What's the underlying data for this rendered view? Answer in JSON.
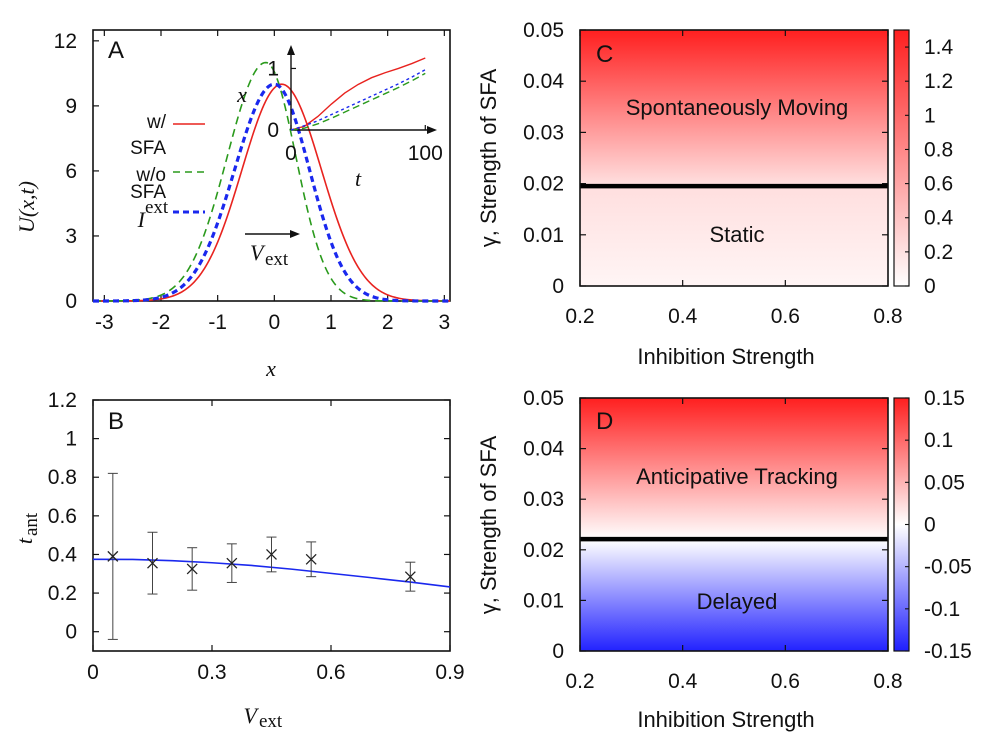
{
  "chart_data": [
    {
      "panel": "A",
      "type": "line",
      "xlabel": "x",
      "ylabel": "U(x,t)",
      "xlim": [
        -3.2,
        3.1
      ],
      "ylim": [
        0,
        12.5
      ],
      "xticks": [
        "-3",
        "-2",
        "-1",
        "0",
        "1",
        "2",
        "3"
      ],
      "yticks": [
        "0",
        "3",
        "6",
        "9",
        "12"
      ],
      "series": [
        {
          "name": "w/ SFA",
          "color": "#e8231f",
          "style": "solid",
          "peak_x": 0.13,
          "peak_y": 10.0,
          "sigma_left": 0.7,
          "sigma_right": 0.7
        },
        {
          "name": "w/o SFA",
          "color": "#2a9a1c",
          "style": "dashed",
          "peak_x": -0.15,
          "peak_y": 11.0,
          "sigma_left": 0.68,
          "sigma_right": 0.53
        },
        {
          "name": "I^ext",
          "color": "#1a28ee",
          "style": "dashed-thick",
          "peak_x": 0.0,
          "peak_y": 10.0,
          "sigma_left": 0.7,
          "sigma_right": 0.62
        }
      ],
      "legend_display": [
        "w/",
        "SFA",
        "w/o",
        "SFA",
        "I",
        "ext"
      ],
      "annotation_main": "V",
      "annotation_sub": "ext",
      "inset": {
        "xlabel": "t",
        "ylabel": "x",
        "xlim": [
          0,
          105
        ],
        "ylim": [
          0,
          1.3
        ],
        "xticks": [
          "0",
          "100"
        ],
        "yticks": [
          "0",
          "1"
        ],
        "series": [
          {
            "name": "w/ SFA",
            "color": "#e8231f",
            "x": [
              0,
              10,
              20,
              30,
              40,
              50,
              60,
              70,
              80,
              90,
              100
            ],
            "y": [
              0,
              0.06,
              0.22,
              0.42,
              0.6,
              0.74,
              0.85,
              0.93,
              1.0,
              1.08,
              1.17
            ]
          },
          {
            "name": "w/o SFA",
            "color": "#2a9a1c",
            "x": [
              0,
              10,
              20,
              30,
              40,
              50,
              60,
              70,
              80,
              90,
              100
            ],
            "y": [
              0,
              0.03,
              0.1,
              0.19,
              0.29,
              0.39,
              0.49,
              0.59,
              0.69,
              0.8,
              0.92
            ]
          },
          {
            "name": "I^ext",
            "color": "#1a28ee",
            "x": [
              0,
              10,
              20,
              30,
              40,
              50,
              60,
              70,
              80,
              90,
              100
            ],
            "y": [
              0,
              0.07,
              0.15,
              0.25,
              0.35,
              0.45,
              0.55,
              0.65,
              0.75,
              0.86,
              0.98
            ]
          }
        ]
      }
    },
    {
      "panel": "B",
      "type": "scatter",
      "xlabel_main": "V",
      "xlabel_sub": "ext",
      "ylabel_main": "t",
      "ylabel_sub": "ant",
      "xlim": [
        0,
        0.9
      ],
      "ylim": [
        -0.1,
        1.2
      ],
      "xticks": [
        "0",
        "0.3",
        "0.6",
        "0.9"
      ],
      "yticks": [
        "0",
        "0.2",
        "0.4",
        "0.6",
        "0.8",
        "1",
        "1.2"
      ],
      "points": {
        "x": [
          0.05,
          0.15,
          0.25,
          0.35,
          0.45,
          0.55,
          0.8
        ],
        "y": [
          0.39,
          0.355,
          0.325,
          0.355,
          0.4,
          0.375,
          0.285
        ],
        "err": [
          0.43,
          0.16,
          0.11,
          0.1,
          0.09,
          0.09,
          0.075
        ]
      },
      "curve": {
        "color": "#1a28ee",
        "x": [
          0,
          0.1,
          0.2,
          0.3,
          0.4,
          0.5,
          0.6,
          0.7,
          0.8,
          0.9
        ],
        "y": [
          0.375,
          0.374,
          0.368,
          0.357,
          0.343,
          0.324,
          0.302,
          0.28,
          0.257,
          0.232
        ]
      }
    },
    {
      "panel": "C",
      "type": "heatmap",
      "xlabel": "Inhibition Strength",
      "ylabel": "γ, Strength of SFA",
      "xlim": [
        0.2,
        0.8
      ],
      "ylim": [
        0,
        0.05
      ],
      "xticks": [
        "0.2",
        "0.4",
        "0.6",
        "0.8"
      ],
      "yticks": [
        "0",
        "0.01",
        "0.02",
        "0.03",
        "0.04",
        "0.05"
      ],
      "colorbar_ticks": [
        "0",
        "0.2",
        "0.4",
        "0.6",
        "0.8",
        "1",
        "1.2",
        "1.4"
      ],
      "colorbar_range": [
        0,
        1.5
      ],
      "boundary_gamma": 0.0195,
      "region_upper": "Spontaneously Moving",
      "region_lower": "Static"
    },
    {
      "panel": "D",
      "type": "heatmap",
      "xlabel": "Inhibition Strength",
      "ylabel": "γ, Strength of SFA",
      "xlim": [
        0.2,
        0.8
      ],
      "ylim": [
        0,
        0.05
      ],
      "xticks": [
        "0.2",
        "0.4",
        "0.6",
        "0.8"
      ],
      "yticks": [
        "0",
        "0.01",
        "0.02",
        "0.03",
        "0.04",
        "0.05"
      ],
      "colorbar_ticks": [
        "-0.15",
        "-0.1",
        "-0.05",
        "0",
        "0.05",
        "0.1",
        "0.15"
      ],
      "colorbar_range": [
        -0.15,
        0.15
      ],
      "boundary_gamma": 0.0221,
      "region_upper": "Anticipative Tracking",
      "region_lower": "Delayed"
    }
  ]
}
